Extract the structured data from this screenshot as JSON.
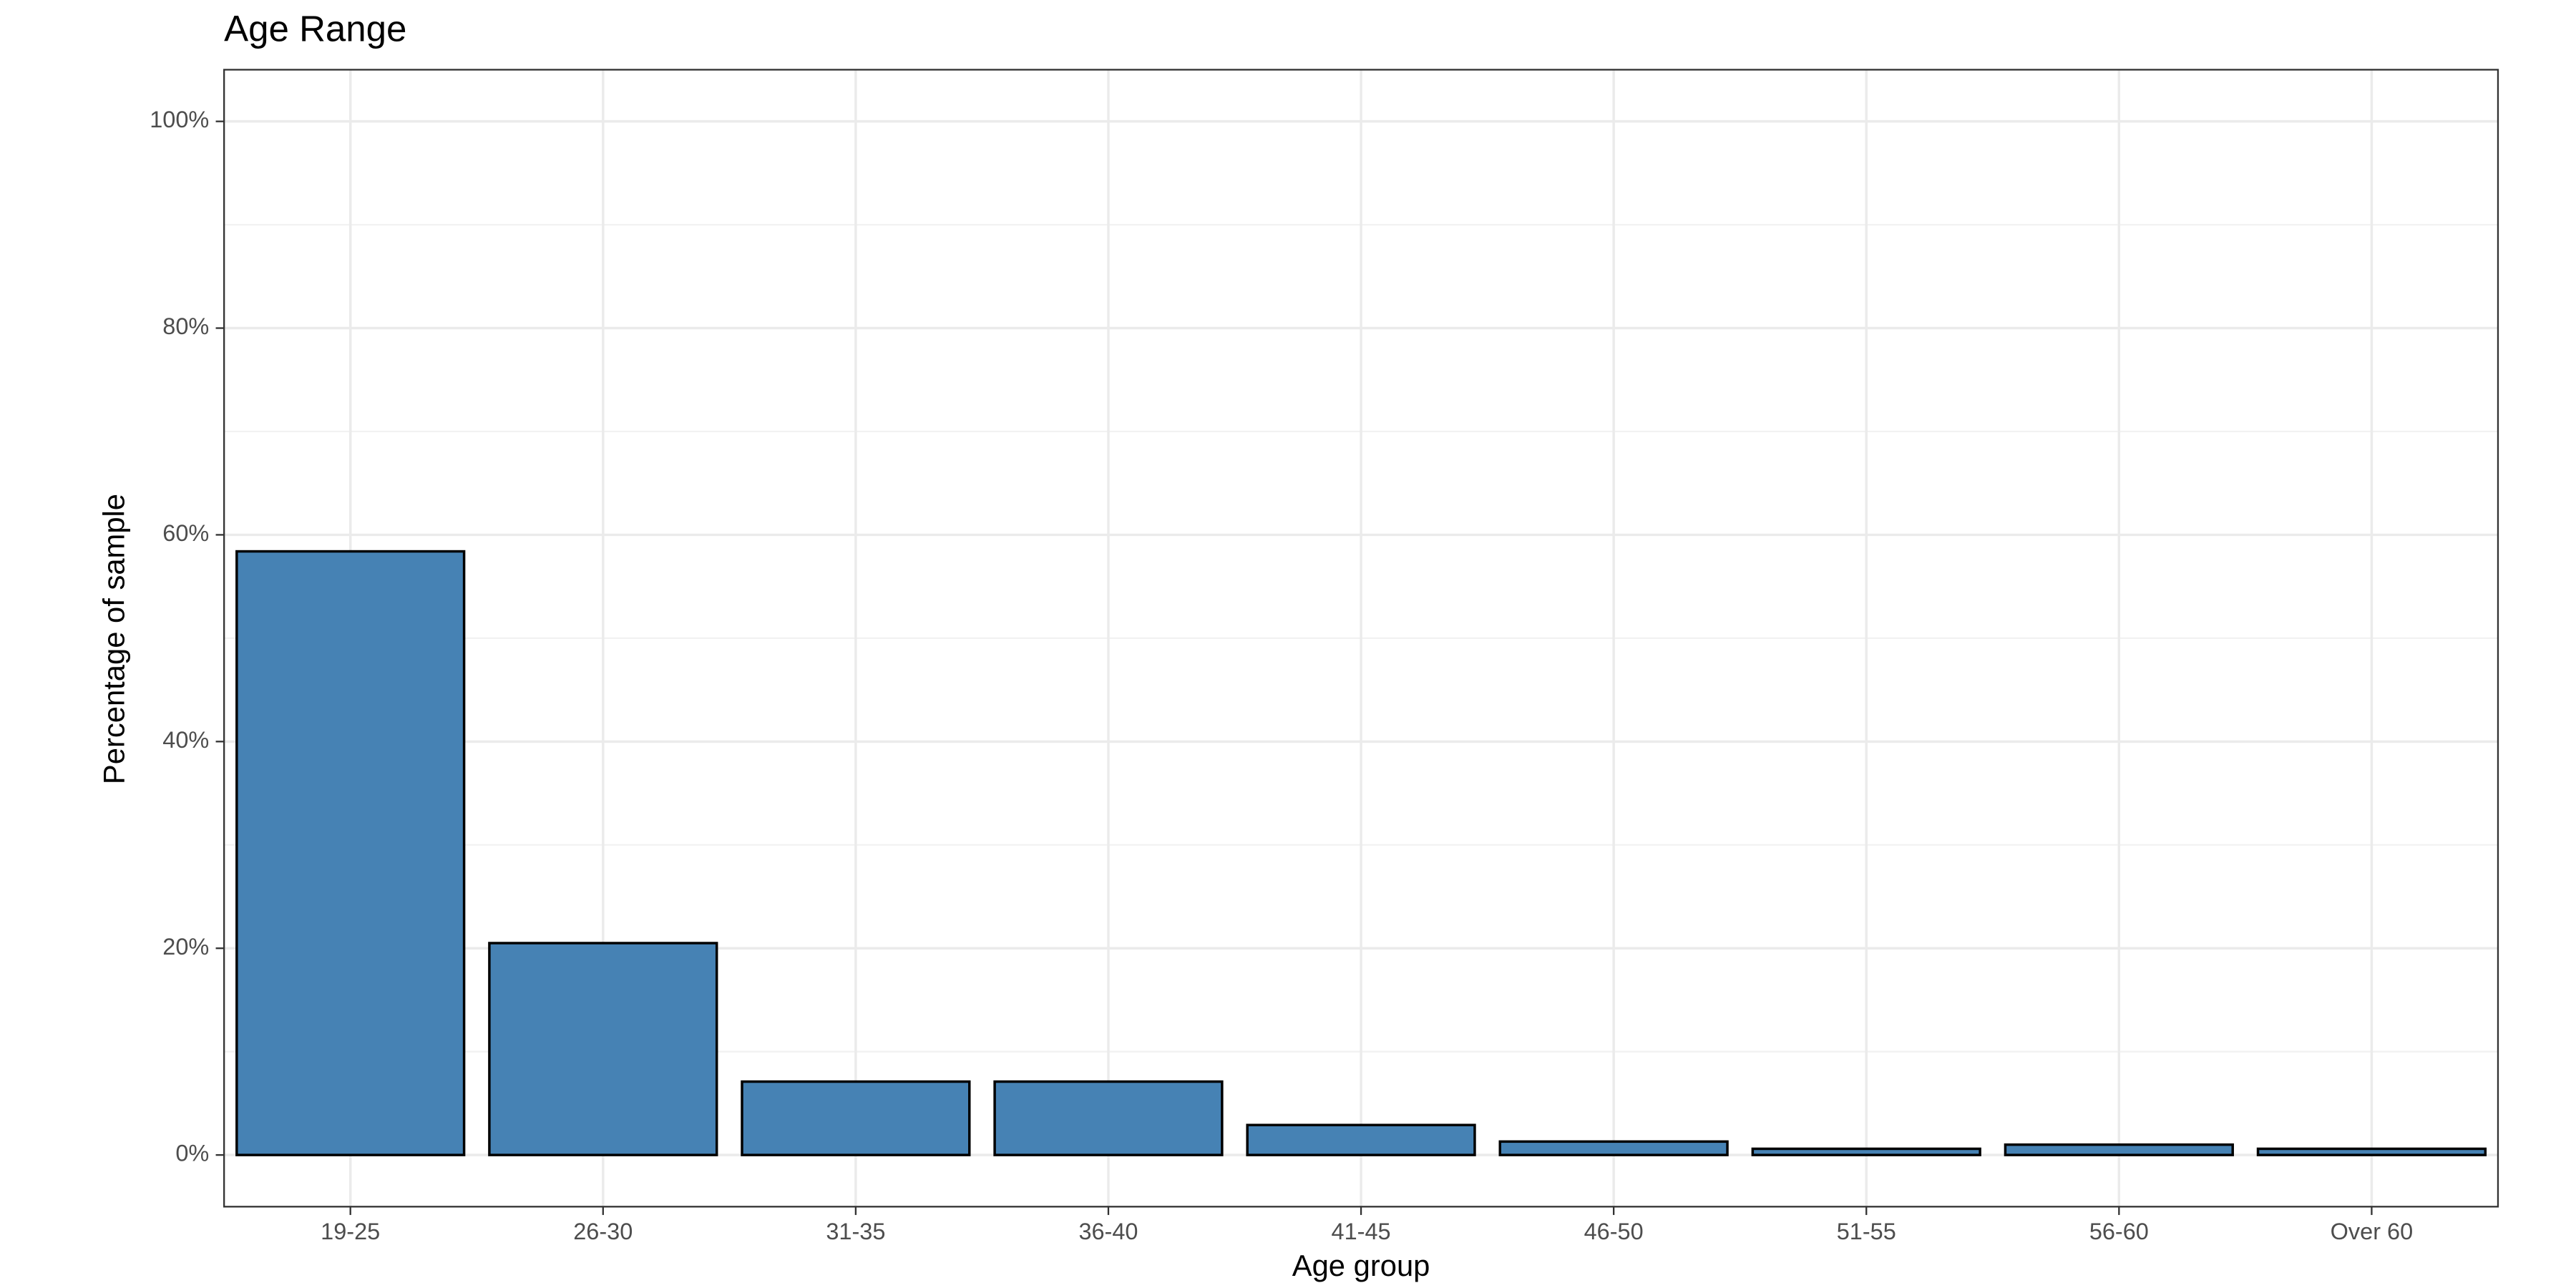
{
  "chart_data": {
    "type": "bar",
    "title": "Age Range",
    "x_label": "Age group",
    "y_label": "Percentage of sample",
    "categories": [
      "19-25",
      "26-30",
      "31-35",
      "36-40",
      "41-45",
      "46-50",
      "51-55",
      "56-60",
      "Over 60"
    ],
    "values": [
      58.4,
      20.5,
      7.1,
      7.1,
      2.9,
      1.3,
      0.6,
      1.0,
      0.6
    ],
    "color": "#4682b4",
    "ylim": [
      -5,
      105
    ],
    "yticks": [
      {
        "value": 0,
        "label": "0%"
      },
      {
        "value": 20,
        "label": "20%"
      },
      {
        "value": 40,
        "label": "40%"
      },
      {
        "value": 60,
        "label": "60%"
      },
      {
        "value": 80,
        "label": "80%"
      },
      {
        "value": 100,
        "label": "100%"
      }
    ],
    "minor_yticks": [
      10,
      30,
      50,
      70,
      90
    ],
    "grid": true
  }
}
